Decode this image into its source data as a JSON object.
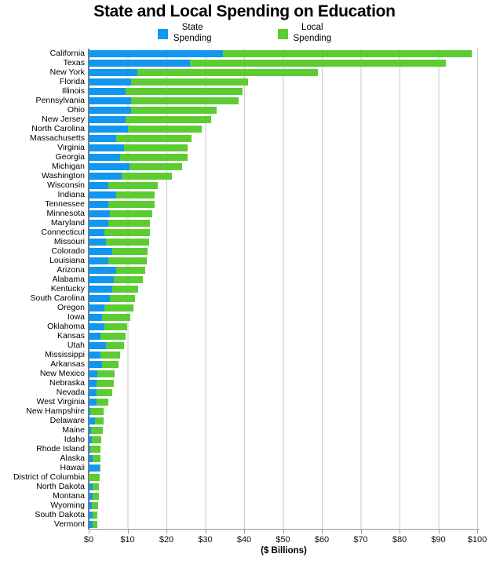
{
  "title": "State and Local Spending on Education",
  "legend": {
    "items": [
      {
        "line1": "State",
        "line2": "Spending"
      },
      {
        "line1": "Local",
        "line2": "Spending"
      }
    ]
  },
  "axis": {
    "xlabel": "($ Billions)",
    "x_ticks": [
      "$0",
      "$10",
      "$20",
      "$30",
      "$40",
      "$50",
      "$60",
      "$70",
      "$80",
      "$90",
      "$100"
    ]
  },
  "colors": {
    "state_spending": "#1296f0",
    "local_spending": "#5dcc33",
    "gridline": "#c9c9c9",
    "axis_line": "#7a7a7a"
  },
  "chart_data": {
    "type": "bar",
    "orientation": "horizontal",
    "stacked": true,
    "title": "State and Local Spending on Education",
    "xlabel": "($ Billions)",
    "units": "$ Billions",
    "xlim": [
      0,
      100
    ],
    "x_tick_step": 10,
    "grid": true,
    "legend_position": "top",
    "categories": [
      "California",
      "Texas",
      "New York",
      "Florida",
      "Illinois",
      "Pennsylvania",
      "Ohio",
      "New Jersey",
      "North Carolina",
      "Massachusetts",
      "Virginia",
      "Georgia",
      "Michigan",
      "Washington",
      "Wisconsin",
      "Indiana",
      "Tennessee",
      "Minnesota",
      "Maryland",
      "Connecticut",
      "Missouri",
      "Colorado",
      "Louisiana",
      "Arizona",
      "Alabama",
      "Kentucky",
      "South Carolina",
      "Oregon",
      "Iowa",
      "Oklahoma",
      "Kansas",
      "Utah",
      "Mississippi",
      "Arkansas",
      "New Mexico",
      "Nebraska",
      "Nevada",
      "West Virginia",
      "New Hampshire",
      "Delaware",
      "Maine",
      "Idaho",
      "Rhode Island",
      "Alaska",
      "Hawaii",
      "District of Columbia",
      "North Dakota",
      "Montana",
      "Wyoming",
      "South Dakota",
      "Vermont"
    ],
    "series": [
      {
        "name": "State Spending",
        "color": "#1296f0",
        "values": [
          34.5,
          26,
          12.5,
          11,
          9.5,
          11,
          11,
          9.5,
          10,
          7,
          9,
          8,
          10.5,
          8.5,
          5,
          7,
          5,
          5.5,
          5,
          4,
          4.5,
          6,
          5,
          7,
          6.5,
          6,
          5.5,
          4,
          3.5,
          4,
          3,
          4.5,
          3,
          3.5,
          2.2,
          2,
          2.1,
          2,
          0.4,
          1.6,
          0.6,
          0.9,
          0.4,
          1.1,
          2.9,
          0,
          1.1,
          1,
          0.9,
          1,
          1
        ]
      },
      {
        "name": "Local Spending",
        "color": "#5dcc33",
        "values": [
          64,
          66,
          46.5,
          30,
          30,
          27.5,
          22,
          22,
          19,
          19.5,
          16.5,
          17.5,
          13.5,
          13,
          12.8,
          10,
          12,
          10.8,
          10.7,
          11.7,
          11,
          9.2,
          10,
          7.5,
          7.5,
          6.7,
          6.5,
          7.5,
          7.3,
          6,
          6.5,
          4.5,
          5,
          4.2,
          4.4,
          4.5,
          4,
          3,
          3.4,
          2.2,
          3,
          2.3,
          2.7,
          2,
          0.2,
          2.8,
          1.6,
          1.6,
          1.6,
          1.3,
          1.2
        ]
      }
    ]
  }
}
